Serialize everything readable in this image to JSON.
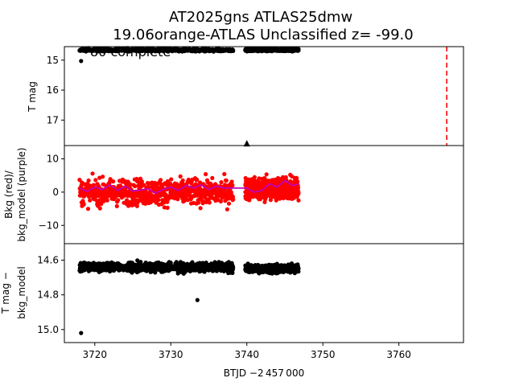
{
  "title_line1": "AT2025gns  ATLAS25dmw",
  "title_line2": "19.06orange-ATLAS Unclassified z= -99.0",
  "overlay_text": "80 complete",
  "xlabel": "BTJD −2 457 000",
  "colors": {
    "mag": "#000000",
    "bkg": "#ff0000",
    "model": "#bf00bf",
    "marker_line": "#ff0000"
  },
  "chart_data": [
    {
      "type": "scatter",
      "panel": "top",
      "ylabel": "T mag",
      "yinverted": true,
      "xlim": [
        3716.0,
        3768.5
      ],
      "ylim": [
        14.55,
        17.85
      ],
      "yticks": [
        "15",
        "16",
        "17"
      ],
      "xticks": [],
      "segments": [
        {
          "x_range": [
            3718.0,
            3738.2
          ],
          "y_center": 14.66,
          "y_spread": 0.07
        },
        {
          "x_range": [
            3739.8,
            3746.8
          ],
          "y_center": 14.66,
          "y_spread": 0.06
        }
      ],
      "outliers": [
        {
          "x": 3718.2,
          "y": 15.03
        }
      ],
      "triangle_marker": {
        "x": 3740.0,
        "y": 17.8
      },
      "vline_x": 3766.3
    },
    {
      "type": "scatter",
      "panel": "middle",
      "ylabel": "Bkg (red)/\nbkg_model (purple)",
      "xlim": [
        3716.0,
        3768.5
      ],
      "ylim": [
        -15.5,
        14.0
      ],
      "yticks": [
        "10",
        "0",
        "−10"
      ],
      "xticks": [],
      "segments": [
        {
          "x_range": [
            3718.0,
            3738.2
          ],
          "y_center": 0.0,
          "y_spread": 6.0
        },
        {
          "x_range": [
            3739.8,
            3746.8
          ],
          "y_center": 1.0,
          "y_spread": 5.0
        }
      ],
      "model_line": {
        "x": [
          3718,
          3719,
          3720,
          3721,
          3722,
          3723,
          3724,
          3725,
          3726,
          3727,
          3728,
          3729,
          3730,
          3731,
          3732,
          3733,
          3734,
          3735,
          3736,
          3737,
          3738,
          3739,
          3740,
          3741,
          3742,
          3743,
          3744,
          3745,
          3746,
          3746.8
        ],
        "y": [
          1.2,
          0.2,
          1.5,
          0.8,
          2.2,
          0.5,
          1.8,
          0.3,
          0.6,
          1.0,
          -0.3,
          0.8,
          1.5,
          0.5,
          2.0,
          1.2,
          2.2,
          0.8,
          1.8,
          1.2,
          1.2,
          1.2,
          1.2,
          0.0,
          0.5,
          2.5,
          1.5,
          3.5,
          2.0,
          2.5
        ]
      }
    },
    {
      "type": "scatter",
      "panel": "bottom",
      "ylabel": "T mag −\nbkg_model",
      "yinverted": true,
      "xlim": [
        3716.0,
        3768.5
      ],
      "ylim": [
        14.505,
        15.075
      ],
      "yticks": [
        "14.6",
        "14.8",
        "15.0"
      ],
      "xticks": [
        "3720",
        "3730",
        "3740",
        "3750",
        "3760"
      ],
      "xtick_values": [
        3720,
        3730,
        3740,
        3750,
        3760
      ],
      "segments": [
        {
          "x_range": [
            3718.0,
            3738.2
          ],
          "y_center": 14.64,
          "y_spread": 0.04
        },
        {
          "x_range": [
            3739.8,
            3746.8
          ],
          "y_center": 14.65,
          "y_spread": 0.035
        }
      ],
      "outliers": [
        {
          "x": 3718.2,
          "y": 15.02
        },
        {
          "x": 3733.5,
          "y": 14.83
        }
      ]
    }
  ]
}
